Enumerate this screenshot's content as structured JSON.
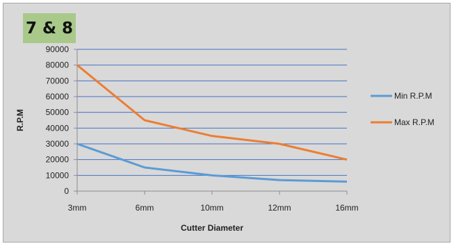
{
  "header": {
    "badge": "7 & 8"
  },
  "colors": {
    "background": "#d9d9d9",
    "grid": "#4472c4",
    "min": "#5b9bd5",
    "max": "#ed7d31",
    "badge": "#a9c98b"
  },
  "chart_data": {
    "type": "line",
    "categories": [
      "3mm",
      "6mm",
      "10mm",
      "12mm",
      "16mm"
    ],
    "series": [
      {
        "name": "Min R.P.M",
        "color": "#5b9bd5",
        "values": [
          30000,
          15000,
          10000,
          7000,
          6000
        ]
      },
      {
        "name": "Max R.P.M",
        "color": "#ed7d31",
        "values": [
          80000,
          45000,
          35000,
          30000,
          20000
        ]
      }
    ],
    "title": "",
    "xlabel": "Cutter Diameter",
    "ylabel": "R.P.M",
    "ylim": [
      0,
      90000
    ],
    "yticks": [
      0,
      10000,
      20000,
      30000,
      40000,
      50000,
      60000,
      70000,
      80000,
      90000
    ],
    "grid": true,
    "legend": "right"
  }
}
